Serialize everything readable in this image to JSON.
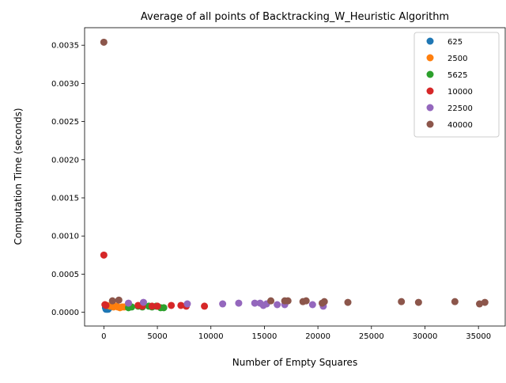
{
  "chart_data": {
    "type": "scatter",
    "title": "Average of all points of Backtracking_W_Heuristic Algorithm",
    "xlabel": "Number of Empty Squares",
    "ylabel": "Computation Time (seconds)",
    "xlim": [
      -1800,
      37500
    ],
    "ylim": [
      -0.00018,
      0.00373
    ],
    "x_ticks": [
      0,
      5000,
      10000,
      15000,
      20000,
      25000,
      30000,
      35000
    ],
    "x_tick_labels": [
      "0",
      "5000",
      "10000",
      "15000",
      "20000",
      "25000",
      "30000",
      "35000"
    ],
    "y_ticks": [
      0.0,
      0.0005,
      0.001,
      0.0015,
      0.002,
      0.0025,
      0.003,
      0.0035
    ],
    "y_tick_labels": [
      "0.0000",
      "0.0005",
      "0.0010",
      "0.0015",
      "0.0020",
      "0.0025",
      "0.0030",
      "0.0035"
    ],
    "grid": false,
    "legend_position": "top-right",
    "series": [
      {
        "name": "625",
        "color": "#1f77b4",
        "points": [
          [
            150,
            6e-05
          ],
          [
            200,
            4e-05
          ],
          [
            250,
            5e-05
          ],
          [
            300,
            4e-05
          ],
          [
            350,
            5e-05
          ],
          [
            400,
            4e-05
          ],
          [
            450,
            5e-05
          ],
          [
            500,
            6e-05
          ]
        ]
      },
      {
        "name": "2500",
        "color": "#ff7f0e",
        "points": [
          [
            300,
            9e-05
          ],
          [
            600,
            8e-05
          ],
          [
            900,
            7e-05
          ],
          [
            1100,
            8e-05
          ],
          [
            1300,
            7e-05
          ],
          [
            1500,
            6e-05
          ],
          [
            1700,
            7e-05
          ],
          [
            1900,
            7e-05
          ]
        ]
      },
      {
        "name": "5625",
        "color": "#2ca02c",
        "points": [
          [
            2300,
            6e-05
          ],
          [
            2600,
            7e-05
          ],
          [
            3200,
            8e-05
          ],
          [
            3600,
            7e-05
          ],
          [
            4200,
            8e-05
          ],
          [
            4500,
            7e-05
          ],
          [
            4900,
            8e-05
          ],
          [
            5300,
            6e-05
          ],
          [
            5600,
            6e-05
          ]
        ]
      },
      {
        "name": "10000",
        "color": "#d62728",
        "points": [
          [
            0,
            0.00075
          ],
          [
            100,
            0.0001
          ],
          [
            200,
            9e-05
          ],
          [
            3200,
            9e-05
          ],
          [
            3600,
            8e-05
          ],
          [
            4500,
            8e-05
          ],
          [
            5000,
            8e-05
          ],
          [
            6300,
            9e-05
          ],
          [
            7200,
            9e-05
          ],
          [
            7700,
            8e-05
          ],
          [
            9400,
            8e-05
          ]
        ]
      },
      {
        "name": "22500",
        "color": "#9467bd",
        "points": [
          [
            2300,
            0.00012
          ],
          [
            3700,
            0.00013
          ],
          [
            7800,
            0.00011
          ],
          [
            11100,
            0.00011
          ],
          [
            12600,
            0.00012
          ],
          [
            14100,
            0.00012
          ],
          [
            14600,
            0.00012
          ],
          [
            14900,
            9e-05
          ],
          [
            15200,
            0.00011
          ],
          [
            16200,
            0.0001
          ],
          [
            16900,
            0.0001
          ],
          [
            19500,
            0.0001
          ],
          [
            20500,
            8e-05
          ]
        ]
      },
      {
        "name": "40000",
        "color": "#8c564b",
        "points": [
          [
            0,
            0.00354
          ],
          [
            800,
            0.00015
          ],
          [
            1400,
            0.00016
          ],
          [
            15600,
            0.00015
          ],
          [
            16900,
            0.00015
          ],
          [
            17200,
            0.00015
          ],
          [
            18600,
            0.00014
          ],
          [
            18900,
            0.00015
          ],
          [
            20400,
            0.00012
          ],
          [
            20600,
            0.00014
          ],
          [
            22800,
            0.00013
          ],
          [
            27800,
            0.00014
          ],
          [
            29400,
            0.00013
          ],
          [
            32800,
            0.00014
          ],
          [
            35100,
            0.00011
          ],
          [
            35600,
            0.00013
          ]
        ]
      }
    ]
  }
}
